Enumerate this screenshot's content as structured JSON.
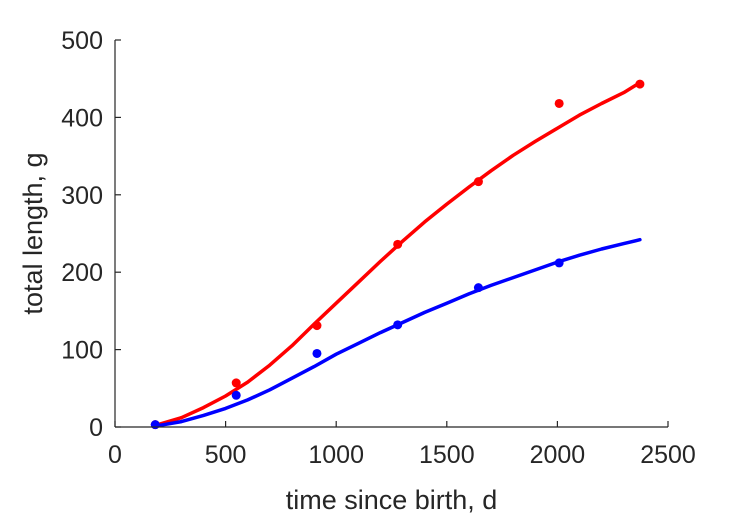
{
  "chart_data": {
    "type": "scatter",
    "title": "",
    "xlabel": "time since birth, d",
    "ylabel": "total length, g",
    "xlim": [
      0,
      2500
    ],
    "ylim": [
      0,
      500
    ],
    "xticks": [
      0,
      500,
      1000,
      1500,
      2000,
      2500
    ],
    "yticks": [
      0,
      100,
      200,
      300,
      400,
      500
    ],
    "grid": false,
    "legend": "none",
    "series": [
      {
        "color": "#ff0000",
        "points": {
          "x": [
            182,
            548,
            913,
            1278,
            1643,
            2008,
            2373
          ],
          "y": [
            3,
            57,
            131,
            236,
            317,
            418,
            443
          ]
        },
        "fit": {
          "x": [
            180,
            300,
            400,
            500,
            600,
            700,
            800,
            900,
            1000,
            1100,
            1200,
            1300,
            1400,
            1500,
            1600,
            1700,
            1800,
            1900,
            2000,
            2100,
            2200,
            2300,
            2373
          ],
          "y": [
            2,
            12,
            25,
            40,
            58,
            80,
            105,
            133,
            160,
            187,
            214,
            240,
            265,
            288,
            310,
            331,
            351,
            369,
            386,
            403,
            418,
            432,
            445
          ]
        }
      },
      {
        "color": "#0000ff",
        "points": {
          "x": [
            182,
            548,
            913,
            1278,
            1643,
            2008
          ],
          "y": [
            3,
            41,
            95,
            132,
            180,
            212
          ]
        },
        "fit": {
          "x": [
            180,
            300,
            400,
            500,
            600,
            700,
            800,
            900,
            1000,
            1100,
            1200,
            1300,
            1400,
            1500,
            1600,
            1700,
            1800,
            1900,
            2000,
            2100,
            2200,
            2300,
            2373
          ],
          "y": [
            1,
            7,
            15,
            24,
            35,
            48,
            63,
            78,
            94,
            108,
            122,
            135,
            148,
            160,
            172,
            183,
            193,
            203,
            213,
            222,
            230,
            237,
            242
          ]
        }
      }
    ]
  }
}
